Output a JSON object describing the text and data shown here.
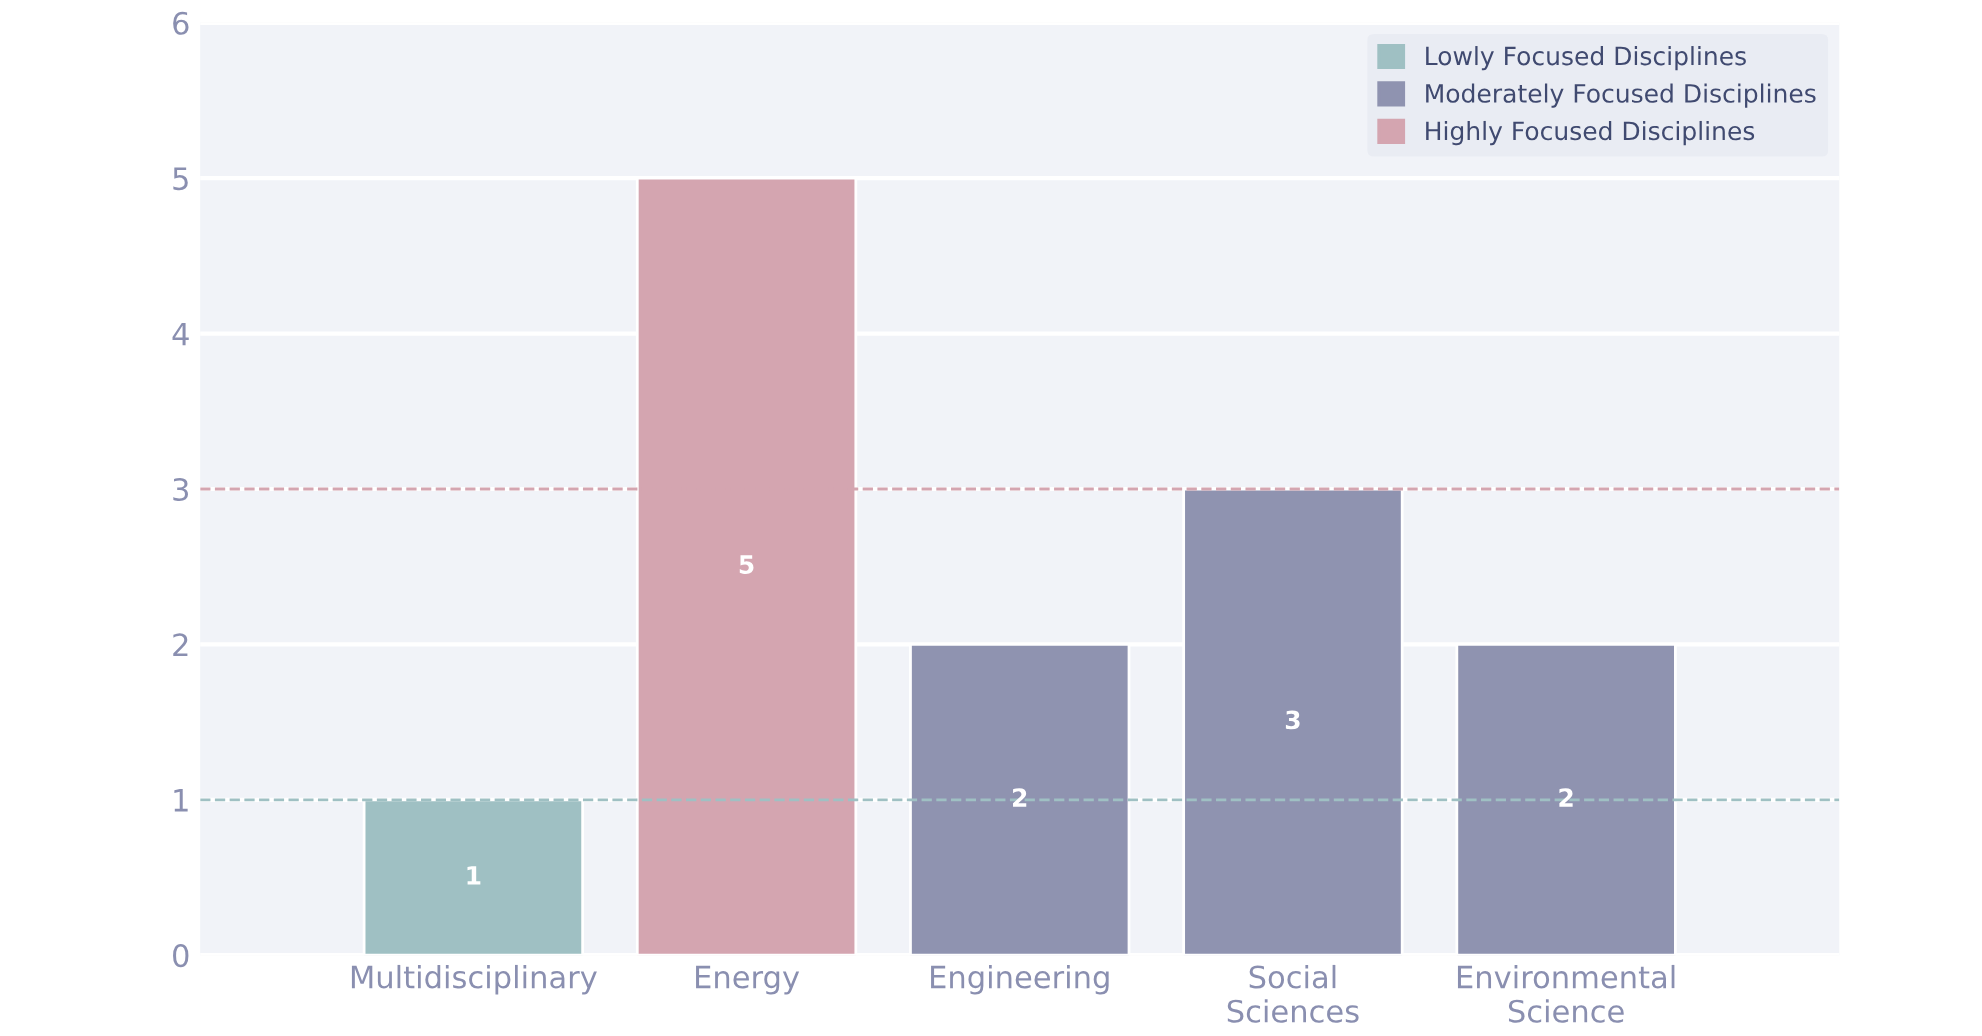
{
  "chart_data": {
    "type": "bar",
    "categories": [
      "Multidisciplinary",
      "Energy",
      "Engineering",
      "Social\nSciences",
      "Environmental\nScience"
    ],
    "series": [
      {
        "name": "Lowly Focused Disciplines",
        "color": "#9fc0c3",
        "values": [
          1,
          null,
          null,
          null,
          null
        ]
      },
      {
        "name": "Moderately Focused Disciplines",
        "color": "#8f93b0",
        "values": [
          null,
          null,
          2,
          3,
          2
        ]
      },
      {
        "name": "Highly Focused Disciplines",
        "color": "#d4a5b0",
        "values": [
          null,
          5,
          null,
          null,
          null
        ]
      }
    ],
    "ylim": [
      0,
      6
    ],
    "yticks": [
      0,
      1,
      2,
      3,
      4,
      5,
      6
    ],
    "grid": "y",
    "legend": "top right",
    "data_labels": true,
    "ref_lines": [
      {
        "axis": "y",
        "value": 1,
        "color": "#9fc0c3",
        "line_style": "dashed"
      },
      {
        "axis": "y",
        "value": 3,
        "color": "#d4a5b0",
        "line_style": "dashed"
      }
    ]
  }
}
